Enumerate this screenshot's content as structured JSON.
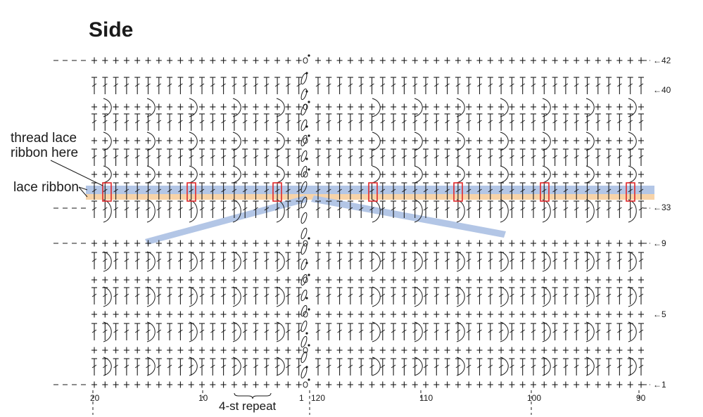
{
  "title": "Side",
  "annotations": {
    "thread_line1": "thread lace",
    "thread_line2": "ribbon here",
    "lace_ribbon": "lace ribbon",
    "repeat": "4-st repeat"
  },
  "row_labels": [
    "42",
    "40",
    "33",
    "9",
    "5",
    "1"
  ],
  "column_labels": {
    "left": [
      "20",
      "10",
      "1"
    ],
    "right": [
      "120",
      "110",
      "100",
      "90"
    ]
  },
  "colors": {
    "ribbon_band": "#b3c6e6",
    "ribbon_under": "#f7d3a8",
    "marker": "#e0282a",
    "stitch": "#1a1a1a"
  }
}
